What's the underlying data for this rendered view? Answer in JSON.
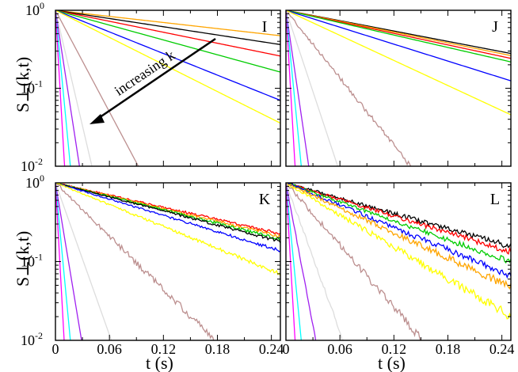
{
  "figure": {
    "ylabel": "S⊥(k,t)",
    "xlabel": "t (s)",
    "annotation": "increasing k"
  },
  "chart_data": {
    "type": "line",
    "xlim": [
      0,
      0.25
    ],
    "ylim": [
      0.01,
      1
    ],
    "yscale": "log",
    "x_ticks": [
      0,
      0.06,
      0.12,
      0.18,
      0.24
    ],
    "x_tick_labels": [
      "0",
      "0.06",
      "0.12",
      "0.18",
      "0.24"
    ],
    "y_tick_labels": [
      {
        "base": "10",
        "exp": "0",
        "value": 1
      },
      {
        "base": "10",
        "exp": "-1",
        "value": 0.1
      },
      {
        "base": "10",
        "exp": "-2",
        "value": 0.01
      }
    ],
    "note": "Each curve is approximately an exponential decay S = exp(-t/tau); tau in seconds per color, k increasing from orange to purple.",
    "panels": [
      {
        "label": "I",
        "series": [
          {
            "color": "#ffa500",
            "tau": 0.333,
            "noise": 0
          },
          {
            "color": "#000000",
            "tau": 0.247,
            "noise": 0
          },
          {
            "color": "#ff0000",
            "tau": 0.185,
            "noise": 0
          },
          {
            "color": "#00cc00",
            "tau": 0.137,
            "noise": 0
          },
          {
            "color": "#0000ff",
            "tau": 0.094,
            "noise": 0
          },
          {
            "color": "#ffff00",
            "tau": 0.075,
            "noise": 0
          },
          {
            "color": "#bc8f8f",
            "tau": 0.02,
            "noise": 0
          },
          {
            "color": "#dddddd",
            "tau": 0.0088,
            "noise": 0
          },
          {
            "color": "#a020f0",
            "tau": 0.0058,
            "noise": 0
          },
          {
            "color": "#00ffff",
            "tau": 0.0036,
            "noise": 0
          },
          {
            "color": "#ff00ff",
            "tau": 0.0022,
            "noise": 0
          }
        ]
      },
      {
        "label": "J",
        "series": [
          {
            "color": "#000000",
            "tau": 0.196,
            "noise": 0
          },
          {
            "color": "#ffa500",
            "tau": 0.187,
            "noise": 0
          },
          {
            "color": "#ff0000",
            "tau": 0.176,
            "noise": 0
          },
          {
            "color": "#00cc00",
            "tau": 0.164,
            "noise": 0
          },
          {
            "color": "#0000ff",
            "tau": 0.12,
            "noise": 0
          },
          {
            "color": "#ffff00",
            "tau": 0.081,
            "noise": 0
          },
          {
            "color": "#bc8f8f",
            "tau": 0.03,
            "noise": 0.04
          },
          {
            "color": "#dddddd",
            "tau": 0.0125,
            "noise": 0
          },
          {
            "color": "#a020f0",
            "tau": 0.0055,
            "noise": 0
          },
          {
            "color": "#00ffff",
            "tau": 0.0037,
            "noise": 0
          },
          {
            "color": "#ff00ff",
            "tau": 0.0022,
            "noise": 0
          }
        ]
      },
      {
        "label": "K",
        "series": [
          {
            "color": "#ff0000",
            "tau": 0.168,
            "noise": 0.015
          },
          {
            "color": "#ffa500",
            "tau": 0.16,
            "noise": 0.015
          },
          {
            "color": "#00cc00",
            "tau": 0.152,
            "noise": 0.015
          },
          {
            "color": "#000000",
            "tau": 0.146,
            "noise": 0.015
          },
          {
            "color": "#0000ff",
            "tau": 0.126,
            "noise": 0.015
          },
          {
            "color": "#ffff00",
            "tau": 0.094,
            "noise": 0.02
          },
          {
            "color": "#bc8f8f",
            "tau": 0.0385,
            "noise": 0.05
          },
          {
            "color": "#dddddd",
            "tau": 0.0135,
            "noise": 0
          },
          {
            "color": "#a020f0",
            "tau": 0.0063,
            "noise": 0
          },
          {
            "color": "#00ffff",
            "tau": 0.0036,
            "noise": 0
          },
          {
            "color": "#ff00ff",
            "tau": 0.0021,
            "noise": 0
          }
        ]
      },
      {
        "label": "L",
        "series": [
          {
            "color": "#000000",
            "tau": 0.134,
            "noise": 0.03
          },
          {
            "color": "#ff0000",
            "tau": 0.124,
            "noise": 0.03
          },
          {
            "color": "#00cc00",
            "tau": 0.108,
            "noise": 0.03
          },
          {
            "color": "#0000ff",
            "tau": 0.092,
            "noise": 0.035
          },
          {
            "color": "#ffa500",
            "tau": 0.082,
            "noise": 0.04
          },
          {
            "color": "#ffff00",
            "tau": 0.064,
            "noise": 0.045
          },
          {
            "color": "#bc8f8f",
            "tau": 0.033,
            "noise": 0.06
          },
          {
            "color": "#dddddd",
            "tau": 0.0138,
            "noise": 0.04
          },
          {
            "color": "#a020f0",
            "tau": 0.0072,
            "noise": 0.03
          },
          {
            "color": "#00ffff",
            "tau": 0.0037,
            "noise": 0
          },
          {
            "color": "#ff00ff",
            "tau": 0.0022,
            "noise": 0
          }
        ]
      }
    ]
  }
}
